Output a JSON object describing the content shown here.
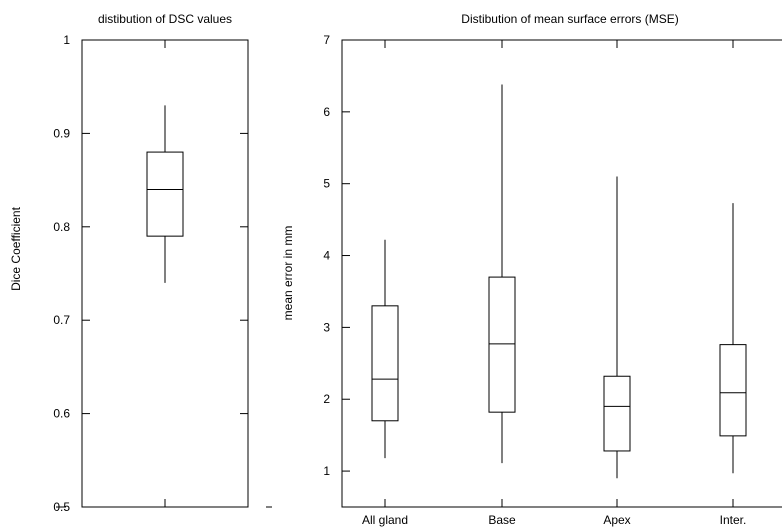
{
  "chart_data": [
    {
      "type": "boxplot",
      "title": "distibution of DSC values",
      "xlabel": "",
      "ylabel": "Dice Coefficient",
      "ylim": [
        0.5,
        1.0
      ],
      "yticks": [
        0.5,
        0.6,
        0.7,
        0.8,
        0.9,
        1.0
      ],
      "ytick_labels": [
        "0.5",
        "0.6",
        "0.7",
        "0.8",
        "0.9",
        "1"
      ],
      "categories": [
        ""
      ],
      "series": [
        {
          "values": [
            {
              "min": 0.74,
              "q1": 0.79,
              "median": 0.84,
              "q3": 0.88,
              "max": 0.93
            }
          ]
        }
      ],
      "grid": false,
      "legend": "none"
    },
    {
      "type": "boxplot",
      "title": "Distibution of mean surface errors (MSE)",
      "xlabel": "",
      "ylabel": "mean error in mm",
      "ylim": [
        0.5,
        7
      ],
      "yticks": [
        1,
        2,
        3,
        4,
        5,
        6,
        7
      ],
      "ytick_labels": [
        "1",
        "2",
        "3",
        "4",
        "5",
        "6",
        "7"
      ],
      "categories": [
        "All gland",
        "Base",
        "Apex",
        "Inter."
      ],
      "series": [
        {
          "values": [
            {
              "min": 1.18,
              "q1": 1.7,
              "median": 2.28,
              "q3": 3.3,
              "max": 4.22
            },
            {
              "min": 1.11,
              "q1": 1.82,
              "median": 2.77,
              "q3": 3.7,
              "max": 6.38
            },
            {
              "min": 0.9,
              "q1": 1.28,
              "median": 1.9,
              "q3": 2.32,
              "max": 5.1
            },
            {
              "min": 0.97,
              "q1": 1.49,
              "median": 2.09,
              "q3": 2.76,
              "max": 4.73
            }
          ]
        }
      ],
      "grid": false,
      "legend": "none"
    }
  ]
}
